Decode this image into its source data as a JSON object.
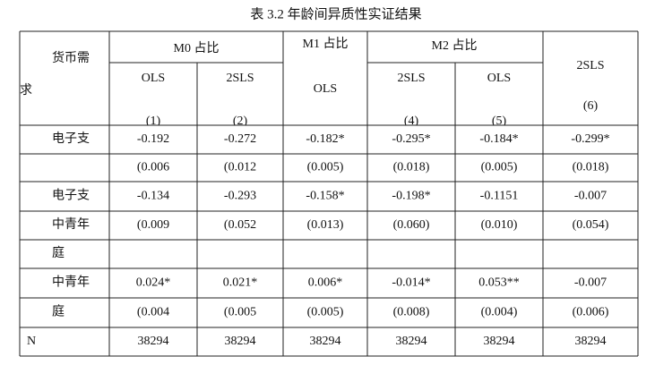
{
  "title": "表 3.2 年龄间异质性实证结果",
  "header": {
    "stub_1": "货币需",
    "stub_2": "求",
    "groups": [
      "M0 占比",
      "M1 占比",
      "M2 占比"
    ],
    "methods": [
      "OLS",
      "2SLS",
      "OLS",
      "2SLS",
      "OLS",
      "2SLS"
    ],
    "numbers": [
      "(1)",
      "(2)",
      null,
      "(4)",
      "(5)",
      "(6)"
    ]
  },
  "table": {
    "rows": [
      [
        "电子支",
        "-0.192",
        "-0.272",
        "-0.182*",
        "-0.295*",
        "-0.184*",
        "-0.299*"
      ],
      [
        null,
        "(0.006",
        "(0.012",
        "(0.005)",
        "(0.018)",
        "(0.005)",
        "(0.018)"
      ],
      [
        "电子支",
        "-0.134",
        "-0.293",
        "-0.158*",
        "-0.198*",
        "-0.1151",
        "-0.007"
      ],
      [
        "中青年",
        "(0.009",
        "(0.052",
        "(0.013)",
        "(0.060)",
        "(0.010)",
        "(0.054)"
      ],
      [
        "庭",
        null,
        null,
        null,
        null,
        null,
        null
      ],
      [
        "中青年",
        "0.024*",
        "0.021*",
        "0.006*",
        "-0.014*",
        "0.053**",
        "-0.007"
      ],
      [
        "庭",
        "(0.004",
        "(0.005",
        "(0.005)",
        "(0.008)",
        "(0.004)",
        "(0.006)"
      ],
      [
        "N",
        "38294",
        "38294",
        "38294",
        "38294",
        "38294",
        "38294"
      ]
    ]
  }
}
